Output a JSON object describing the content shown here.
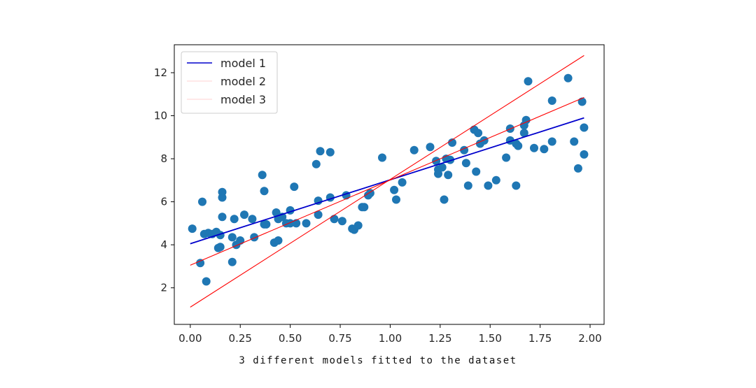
{
  "chart_data": {
    "type": "scatter",
    "title": "",
    "xlabel": "",
    "ylabel": "",
    "xlim": [
      -0.08,
      2.07
    ],
    "ylim": [
      0.3,
      13.3
    ],
    "xticks": [
      "0.00",
      "0.25",
      "0.50",
      "0.75",
      "1.00",
      "1.25",
      "1.50",
      "1.75",
      "2.00"
    ],
    "xtick_values": [
      0,
      0.25,
      0.5,
      0.75,
      1.0,
      1.25,
      1.5,
      1.75,
      2.0
    ],
    "yticks": [
      "2",
      "4",
      "6",
      "8",
      "10",
      "12"
    ],
    "ytick_values": [
      2,
      4,
      6,
      8,
      10,
      12
    ],
    "grid": false,
    "legend_position": "top-left",
    "scatter": {
      "color": "#1f77b4",
      "points": [
        [
          0.01,
          4.75
        ],
        [
          0.05,
          3.15
        ],
        [
          0.06,
          6.0
        ],
        [
          0.07,
          4.5
        ],
        [
          0.08,
          2.3
        ],
        [
          0.09,
          4.55
        ],
        [
          0.11,
          4.5
        ],
        [
          0.13,
          4.6
        ],
        [
          0.14,
          3.85
        ],
        [
          0.15,
          3.9
        ],
        [
          0.15,
          4.45
        ],
        [
          0.16,
          5.3
        ],
        [
          0.16,
          6.2
        ],
        [
          0.16,
          6.45
        ],
        [
          0.21,
          3.2
        ],
        [
          0.21,
          4.35
        ],
        [
          0.22,
          5.2
        ],
        [
          0.23,
          4.0
        ],
        [
          0.25,
          4.2
        ],
        [
          0.27,
          5.4
        ],
        [
          0.31,
          5.2
        ],
        [
          0.32,
          4.35
        ],
        [
          0.36,
          7.25
        ],
        [
          0.37,
          4.95
        ],
        [
          0.37,
          6.5
        ],
        [
          0.38,
          4.95
        ],
        [
          0.42,
          4.1
        ],
        [
          0.43,
          5.5
        ],
        [
          0.44,
          4.2
        ],
        [
          0.44,
          5.2
        ],
        [
          0.46,
          5.3
        ],
        [
          0.48,
          5.0
        ],
        [
          0.5,
          5.0
        ],
        [
          0.5,
          5.6
        ],
        [
          0.52,
          6.7
        ],
        [
          0.53,
          5.0
        ],
        [
          0.58,
          5.0
        ],
        [
          0.63,
          7.75
        ],
        [
          0.64,
          6.05
        ],
        [
          0.64,
          5.4
        ],
        [
          0.65,
          8.35
        ],
        [
          0.7,
          6.2
        ],
        [
          0.7,
          8.3
        ],
        [
          0.72,
          5.2
        ],
        [
          0.76,
          5.1
        ],
        [
          0.78,
          6.3
        ],
        [
          0.81,
          4.75
        ],
        [
          0.82,
          4.7
        ],
        [
          0.84,
          4.9
        ],
        [
          0.86,
          5.75
        ],
        [
          0.87,
          5.75
        ],
        [
          0.89,
          6.3
        ],
        [
          0.9,
          6.4
        ],
        [
          0.96,
          8.05
        ],
        [
          1.02,
          6.55
        ],
        [
          1.03,
          6.1
        ],
        [
          1.06,
          6.9
        ],
        [
          1.12,
          8.4
        ],
        [
          1.2,
          8.55
        ],
        [
          1.23,
          7.9
        ],
        [
          1.24,
          7.3
        ],
        [
          1.24,
          7.5
        ],
        [
          1.26,
          7.6
        ],
        [
          1.27,
          6.1
        ],
        [
          1.28,
          8.0
        ],
        [
          1.29,
          7.25
        ],
        [
          1.3,
          7.95
        ],
        [
          1.31,
          8.75
        ],
        [
          1.37,
          8.4
        ],
        [
          1.38,
          7.8
        ],
        [
          1.39,
          6.75
        ],
        [
          1.42,
          9.35
        ],
        [
          1.43,
          7.4
        ],
        [
          1.44,
          9.2
        ],
        [
          1.45,
          8.7
        ],
        [
          1.47,
          8.85
        ],
        [
          1.49,
          6.75
        ],
        [
          1.53,
          7.0
        ],
        [
          1.58,
          8.05
        ],
        [
          1.6,
          9.4
        ],
        [
          1.6,
          8.85
        ],
        [
          1.63,
          6.75
        ],
        [
          1.63,
          8.7
        ],
        [
          1.64,
          8.6
        ],
        [
          1.67,
          9.2
        ],
        [
          1.67,
          9.55
        ],
        [
          1.68,
          9.8
        ],
        [
          1.69,
          11.6
        ],
        [
          1.72,
          8.5
        ],
        [
          1.77,
          8.45
        ],
        [
          1.81,
          8.8
        ],
        [
          1.81,
          10.7
        ],
        [
          1.89,
          11.75
        ],
        [
          1.92,
          8.8
        ],
        [
          1.94,
          7.55
        ],
        [
          1.96,
          10.65
        ],
        [
          1.97,
          9.45
        ],
        [
          1.97,
          8.2
        ]
      ]
    },
    "series": [
      {
        "name": "model 1",
        "color": "#0000cc",
        "x": [
          0.0,
          1.97
        ],
        "y": [
          4.05,
          9.9
        ]
      },
      {
        "name": "model 2",
        "color": "#ff0000",
        "x": [
          0.0,
          1.97
        ],
        "y": [
          3.05,
          10.85
        ]
      },
      {
        "name": "model 3",
        "color": "#ff0000",
        "x": [
          0.0,
          1.97
        ],
        "y": [
          1.1,
          12.8
        ]
      }
    ]
  },
  "caption": "3 different models fitted to the dataset"
}
